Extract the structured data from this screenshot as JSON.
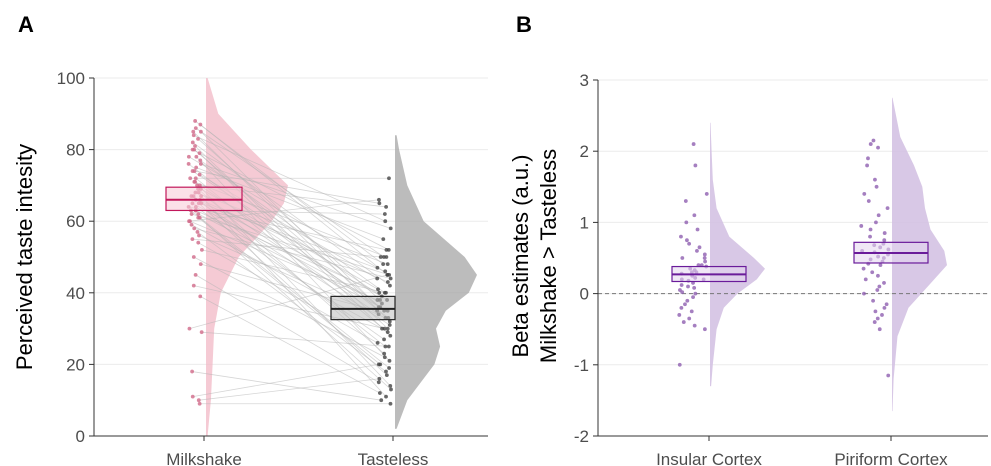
{
  "chart_data": [
    {
      "panel_label": "A",
      "type": "raincloud",
      "ylabel": "Perceived taste intesity",
      "ylim": [
        0,
        100
      ],
      "yticks": [
        0,
        20,
        40,
        60,
        80,
        100
      ],
      "categories": [
        "Milkshake",
        "Tasteless"
      ],
      "paired_lines": true,
      "colors": {
        "Milkshake": "#c2185b",
        "Tasteless": "#222222",
        "Milkshake_fill": "#f2b8c6",
        "Tasteless_fill": "#a6a6a6"
      },
      "boxes": [
        {
          "category": "Milkshake",
          "q1": 63,
          "median": 66,
          "q3": 69.5
        },
        {
          "category": "Tasteless",
          "q1": 32.5,
          "median": 35.5,
          "q3": 39
        }
      ],
      "density": [
        {
          "category": "Milkshake",
          "y": [
            0,
            10,
            20,
            30,
            40,
            50,
            60,
            65,
            70,
            80,
            90,
            100
          ],
          "d": [
            0.02,
            0.06,
            0.08,
            0.1,
            0.18,
            0.4,
            0.8,
            0.95,
            1.0,
            0.55,
            0.15,
            0.02
          ]
        },
        {
          "category": "Tasteless",
          "y": [
            2,
            10,
            20,
            25,
            30,
            35,
            40,
            45,
            50,
            60,
            70,
            80,
            84
          ],
          "d": [
            0.02,
            0.15,
            0.48,
            0.55,
            0.5,
            0.62,
            0.9,
            1.0,
            0.85,
            0.35,
            0.15,
            0.05,
            0.02
          ]
        }
      ],
      "pairs": [
        [
          88,
          48
        ],
        [
          87,
          45
        ],
        [
          86,
          50
        ],
        [
          85,
          36
        ],
        [
          84,
          60
        ],
        [
          83,
          38
        ],
        [
          82,
          42
        ],
        [
          81,
          30
        ],
        [
          80,
          52
        ],
        [
          80,
          35
        ],
        [
          79,
          28
        ],
        [
          78,
          47
        ],
        [
          77,
          40
        ],
        [
          76,
          33
        ],
        [
          75,
          55
        ],
        [
          74,
          38
        ],
        [
          73,
          44
        ],
        [
          72,
          29
        ],
        [
          71,
          50
        ],
        [
          70,
          36
        ],
        [
          70,
          64
        ],
        [
          69,
          41
        ],
        [
          68,
          34
        ],
        [
          68,
          48
        ],
        [
          67,
          25
        ],
        [
          67,
          39
        ],
        [
          66,
          43
        ],
        [
          66,
          31
        ],
        [
          65,
          46
        ],
        [
          65,
          37
        ],
        [
          64,
          52
        ],
        [
          64,
          27
        ],
        [
          63,
          40
        ],
        [
          63,
          62
        ],
        [
          62,
          35
        ],
        [
          62,
          45
        ],
        [
          61,
          20
        ],
        [
          60,
          38
        ],
        [
          60,
          66
        ],
        [
          59,
          30
        ],
        [
          58,
          44
        ],
        [
          57,
          18
        ],
        [
          56,
          33
        ],
        [
          55,
          50
        ],
        [
          54,
          26
        ],
        [
          52,
          40
        ],
        [
          50,
          22
        ],
        [
          48,
          35
        ],
        [
          45,
          15
        ],
        [
          42,
          30
        ],
        [
          39,
          12
        ],
        [
          30,
          45
        ],
        [
          29,
          25
        ],
        [
          18,
          10
        ],
        [
          11,
          20
        ],
        [
          10,
          16
        ],
        [
          9,
          9
        ],
        [
          76,
          58
        ],
        [
          74,
          65
        ],
        [
          72,
          72
        ],
        [
          71,
          14
        ],
        [
          69,
          23
        ],
        [
          67,
          11
        ],
        [
          65,
          17
        ],
        [
          63,
          19
        ],
        [
          61,
          13
        ],
        [
          85,
          32
        ],
        [
          78,
          21
        ]
      ]
    },
    {
      "panel_label": "B",
      "type": "raincloud",
      "ylabel_line1": "Beta estimates (a.u.)",
      "ylabel_line2": "Milkshake > Tasteless",
      "ylim": [
        -2,
        3
      ],
      "yticks": [
        -2,
        -1,
        0,
        1,
        2,
        3
      ],
      "reference_line": 0,
      "categories": [
        "Insular Cortex",
        "Piriform Cortex"
      ],
      "colors": {
        "box": "#6a1b9a",
        "fill": "#d4c2e3",
        "points": "#8e5fb0"
      },
      "boxes": [
        {
          "category": "Insular Cortex",
          "q1": 0.17,
          "median": 0.27,
          "q3": 0.38
        },
        {
          "category": "Piriform Cortex",
          "q1": 0.43,
          "median": 0.57,
          "q3": 0.72
        }
      ],
      "density": [
        {
          "category": "Insular Cortex",
          "y": [
            -1.3,
            -1.0,
            -0.5,
            -0.2,
            0.0,
            0.2,
            0.35,
            0.5,
            0.8,
            1.2,
            1.6,
            2.0,
            2.4
          ],
          "d": [
            0.02,
            0.05,
            0.12,
            0.25,
            0.5,
            0.85,
            1.0,
            0.8,
            0.35,
            0.12,
            0.05,
            0.03,
            0.01
          ]
        },
        {
          "category": "Piriform Cortex",
          "y": [
            -1.65,
            -1.2,
            -0.6,
            -0.2,
            0.1,
            0.4,
            0.6,
            0.9,
            1.2,
            1.5,
            1.8,
            2.2,
            2.75
          ],
          "d": [
            0.01,
            0.03,
            0.1,
            0.3,
            0.65,
            1.0,
            0.95,
            0.7,
            0.6,
            0.55,
            0.4,
            0.15,
            0.01
          ]
        }
      ],
      "points": [
        {
          "category": "Insular Cortex",
          "values": [
            2.1,
            1.8,
            1.4,
            1.3,
            1.1,
            1.0,
            0.9,
            0.8,
            0.75,
            0.7,
            0.65,
            0.6,
            0.55,
            0.5,
            0.5,
            0.45,
            0.4,
            0.4,
            0.38,
            0.35,
            0.33,
            0.3,
            0.3,
            0.28,
            0.25,
            0.22,
            0.2,
            0.2,
            0.18,
            0.15,
            0.12,
            0.1,
            0.08,
            0.05,
            0.02,
            0.0,
            -0.05,
            -0.1,
            -0.15,
            -0.2,
            -0.25,
            -0.3,
            -0.35,
            -0.4,
            -0.45,
            -0.5,
            -1.0
          ]
        },
        {
          "category": "Piriform Cortex",
          "values": [
            2.15,
            2.1,
            2.05,
            1.9,
            1.8,
            1.6,
            1.5,
            1.4,
            1.3,
            1.2,
            1.1,
            1.0,
            0.95,
            0.9,
            0.85,
            0.8,
            0.75,
            0.7,
            0.68,
            0.65,
            0.62,
            0.6,
            0.58,
            0.55,
            0.52,
            0.5,
            0.48,
            0.45,
            0.42,
            0.4,
            0.35,
            0.3,
            0.25,
            0.2,
            0.15,
            0.1,
            0.05,
            0.0,
            -0.1,
            -0.15,
            -0.2,
            -0.25,
            -0.3,
            -0.35,
            -0.4,
            -0.5,
            -1.15
          ]
        }
      ]
    }
  ]
}
